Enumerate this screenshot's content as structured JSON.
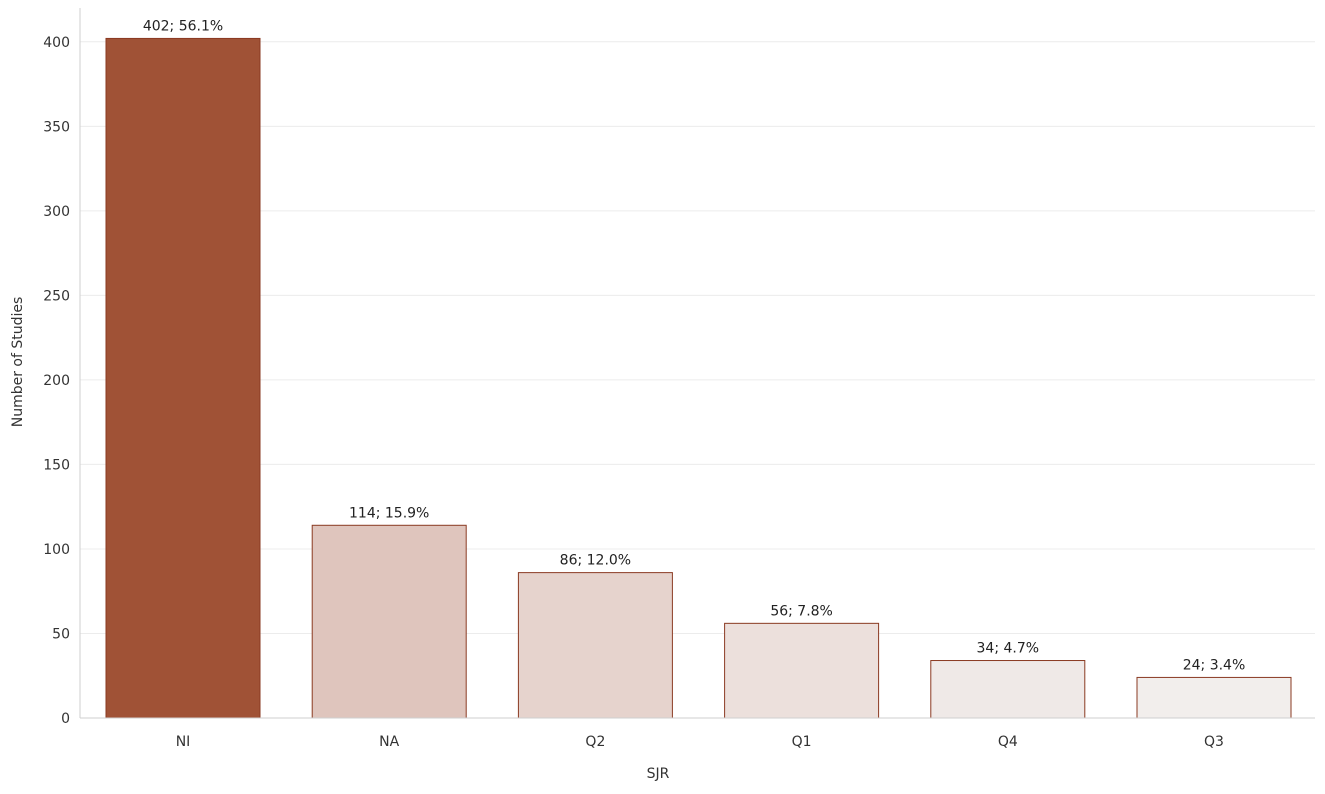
{
  "chart_data": {
    "type": "bar",
    "xlabel": "SJR",
    "ylabel": "Number of Studies",
    "ylim": [
      0,
      420
    ],
    "yticks": [
      0,
      50,
      100,
      150,
      200,
      250,
      300,
      350,
      400
    ],
    "grid": true,
    "categories": [
      "NI",
      "NA",
      "Q2",
      "Q1",
      "Q4",
      "Q3"
    ],
    "values": [
      402,
      114,
      86,
      56,
      34,
      24
    ],
    "labels": [
      "402; 56.1%",
      "114; 15.9%",
      "86; 12.0%",
      "56; 7.8%",
      "34; 4.7%",
      "24; 3.4%"
    ],
    "colors": [
      "#a05236",
      "#dfc5bd",
      "#e6d3cd",
      "#ece0dc",
      "#efe9e7",
      "#f2eeec"
    ],
    "bar_stroke": "#8a3a22"
  }
}
